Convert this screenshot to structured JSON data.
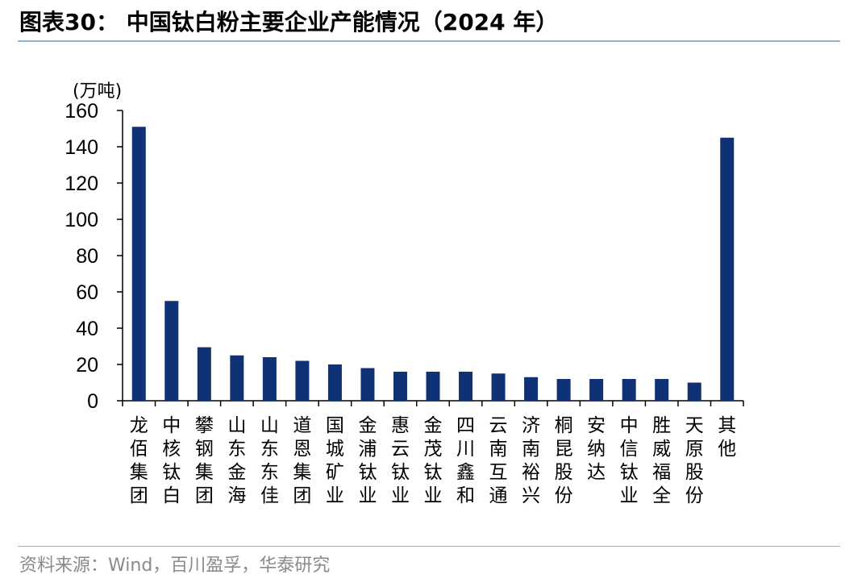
{
  "header": {
    "title": "图表30：  中国钛白粉主要企业产能情况（2024 年）"
  },
  "footer": {
    "source": "资料来源：Wind，百川盈孚，华泰研究"
  },
  "chart_data": {
    "type": "bar",
    "title": "图表30：  中国钛白粉主要企业产能情况（2024 年）",
    "ylabel": "(万吨)",
    "xlabel": "",
    "ylim": [
      0,
      160
    ],
    "yticks": [
      0,
      20,
      40,
      60,
      80,
      100,
      120,
      140,
      160
    ],
    "grid": false,
    "legend": "none",
    "bar_color": "#0f3277",
    "categories": [
      "龙佰集团",
      "中核钛白",
      "攀钢集团",
      "山东金海",
      "山东东佳",
      "道恩集团",
      "国城矿业",
      "金浦钛业",
      "惠云钛业",
      "金茂钛业",
      "四川鑫和",
      "云南互通",
      "济南裕兴",
      "桐昆股份",
      "安纳达",
      "中信钛业",
      "胜威福全",
      "天原股份",
      "其他"
    ],
    "values": [
      151,
      55,
      29.5,
      25,
      24,
      22,
      20,
      18,
      16,
      16,
      16,
      15,
      13,
      12,
      12,
      12,
      12,
      10,
      145
    ]
  }
}
